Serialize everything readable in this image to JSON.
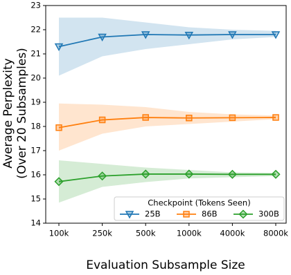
{
  "chart_data": {
    "type": "line",
    "x_label": "Evaluation Subsample Size",
    "y_label": [
      "Average Perplexity",
      "(Over 20 Subsamples)"
    ],
    "categories": [
      "100k",
      "250k",
      "500k",
      "1000k",
      "4000k",
      "8000k"
    ],
    "ylim": [
      14,
      23
    ],
    "yticks": [
      14,
      15,
      16,
      17,
      18,
      19,
      20,
      21,
      22,
      23
    ],
    "grid": false,
    "legend_title": "Checkpoint (Tokens Seen)",
    "legend_position": "lower right",
    "series": [
      {
        "name": "25B",
        "color": "#1f77b4",
        "marker": "triangle-down",
        "values": [
          21.3,
          21.7,
          21.8,
          21.78,
          21.8,
          21.8
        ],
        "lower": [
          20.1,
          20.9,
          21.2,
          21.4,
          21.6,
          21.7
        ],
        "upper": [
          22.5,
          22.5,
          22.3,
          22.1,
          22.0,
          21.95
        ]
      },
      {
        "name": "86B",
        "color": "#ff7f0e",
        "marker": "square",
        "values": [
          17.95,
          18.27,
          18.37,
          18.35,
          18.36,
          18.37
        ],
        "lower": [
          17.0,
          17.7,
          18.0,
          18.1,
          18.2,
          18.3
        ],
        "upper": [
          18.95,
          18.9,
          18.8,
          18.6,
          18.5,
          18.45
        ]
      },
      {
        "name": "300B",
        "color": "#2ca02c",
        "marker": "diamond",
        "values": [
          15.72,
          15.95,
          16.03,
          16.03,
          16.02,
          16.02
        ],
        "lower": [
          14.85,
          15.5,
          15.7,
          15.85,
          15.9,
          15.95
        ],
        "upper": [
          16.6,
          16.45,
          16.3,
          16.2,
          16.1,
          16.08
        ]
      }
    ]
  }
}
